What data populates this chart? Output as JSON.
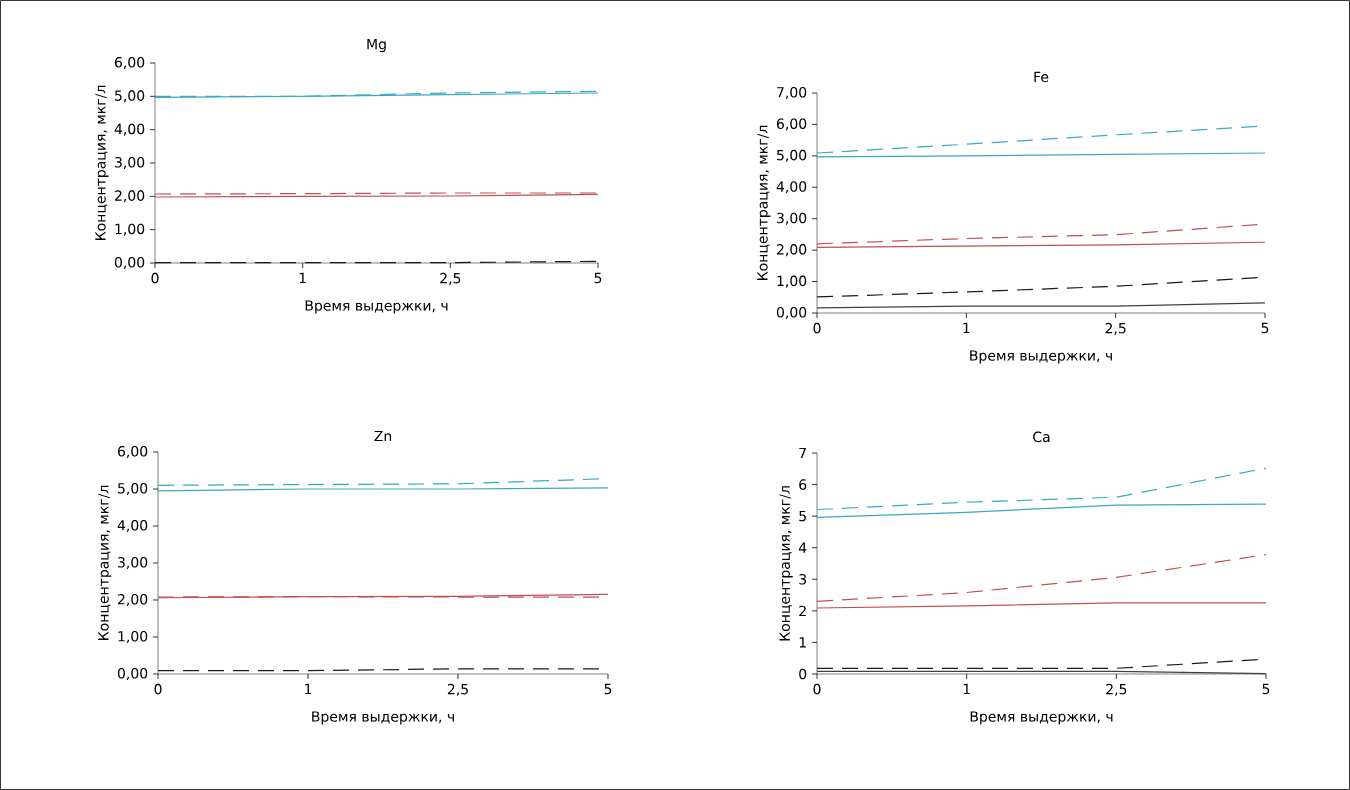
{
  "chart_data": [
    {
      "type": "line",
      "title": "Mg",
      "xlabel": "Время выдержки, ч",
      "ylabel": "Концентрация, мкг/л",
      "categories": [
        "0",
        "1",
        "2,5",
        "5"
      ],
      "ylim": [
        0,
        6
      ],
      "yticks": [
        {
          "value": 0,
          "label": "0,00"
        },
        {
          "value": 1,
          "label": "1,00"
        },
        {
          "value": 2,
          "label": "2,00"
        },
        {
          "value": 3,
          "label": "3,00"
        },
        {
          "value": 4,
          "label": "4,00"
        },
        {
          "value": 5,
          "label": "5,00"
        },
        {
          "value": 6,
          "label": "6,00"
        }
      ],
      "series": [
        {
          "color": "#3aa9c4",
          "line_style": "dashed",
          "values": [
            5.0,
            5.0,
            5.1,
            5.15
          ]
        },
        {
          "color": "#3aa9c4",
          "line_style": "solid",
          "values": [
            4.97,
            5.0,
            5.05,
            5.1
          ]
        },
        {
          "color": "#c0504d",
          "line_style": "dashed",
          "values": [
            2.07,
            2.08,
            2.1,
            2.1
          ]
        },
        {
          "color": "#c0504d",
          "line_style": "solid",
          "values": [
            1.98,
            2.0,
            2.01,
            2.06
          ]
        },
        {
          "color": "#1a1a1a",
          "line_style": "dashed",
          "values": [
            0.01,
            0.01,
            0.01,
            0.05
          ]
        }
      ]
    },
    {
      "type": "line",
      "title": "Fe",
      "xlabel": "Время выдержки, ч",
      "ylabel": "Концентрация, мкг/л",
      "categories": [
        "0",
        "1",
        "2,5",
        "5"
      ],
      "ylim": [
        0,
        7
      ],
      "yticks": [
        {
          "value": 0,
          "label": "0,00"
        },
        {
          "value": 1,
          "label": "1,00"
        },
        {
          "value": 2,
          "label": "2,00"
        },
        {
          "value": 3,
          "label": "3,00"
        },
        {
          "value": 4,
          "label": "4,00"
        },
        {
          "value": 5,
          "label": "5,00"
        },
        {
          "value": 6,
          "label": "6,00"
        },
        {
          "value": 7,
          "label": "7,00"
        }
      ],
      "series": [
        {
          "color": "#3aa9c4",
          "line_style": "dashed",
          "values": [
            5.09,
            5.37,
            5.67,
            5.95
          ]
        },
        {
          "color": "#3aa9c4",
          "line_style": "solid",
          "values": [
            4.97,
            5.0,
            5.05,
            5.09
          ]
        },
        {
          "color": "#c0504d",
          "line_style": "dashed",
          "values": [
            2.2,
            2.37,
            2.49,
            2.83
          ]
        },
        {
          "color": "#c0504d",
          "line_style": "solid",
          "values": [
            2.09,
            2.13,
            2.17,
            2.25
          ]
        },
        {
          "color": "#1a1a1a",
          "line_style": "dashed",
          "values": [
            0.51,
            0.67,
            0.85,
            1.14
          ]
        },
        {
          "color": "#404040",
          "line_style": "solid",
          "values": [
            0.16,
            0.22,
            0.22,
            0.32
          ]
        }
      ]
    },
    {
      "type": "line",
      "title": "Zn",
      "xlabel": "Время выдержки, ч",
      "ylabel": "Концентрация, мкг/л",
      "categories": [
        "0",
        "1",
        "2,5",
        "5"
      ],
      "ylim": [
        0,
        6
      ],
      "yticks": [
        {
          "value": 0,
          "label": "0,00"
        },
        {
          "value": 1,
          "label": "1,00"
        },
        {
          "value": 2,
          "label": "2,00"
        },
        {
          "value": 3,
          "label": "3,00"
        },
        {
          "value": 4,
          "label": "4,00"
        },
        {
          "value": 5,
          "label": "5,00"
        },
        {
          "value": 6,
          "label": "6,00"
        }
      ],
      "series": [
        {
          "color": "#3aa9c4",
          "line_style": "dashed",
          "values": [
            5.1,
            5.12,
            5.14,
            5.28
          ]
        },
        {
          "color": "#3aa9c4",
          "line_style": "solid",
          "values": [
            4.95,
            5.0,
            5.0,
            5.03
          ]
        },
        {
          "color": "#c0504d",
          "line_style": "dashed",
          "values": [
            2.08,
            2.09,
            2.08,
            2.08
          ]
        },
        {
          "color": "#c0504d",
          "line_style": "solid",
          "values": [
            2.06,
            2.09,
            2.1,
            2.15
          ]
        },
        {
          "color": "#1a1a1a",
          "line_style": "dashed",
          "values": [
            0.09,
            0.09,
            0.14,
            0.14
          ]
        }
      ]
    },
    {
      "type": "line",
      "title": "Ca",
      "xlabel": "Время выдержки, ч",
      "ylabel": "Концентрация, мкг/л",
      "categories": [
        "0",
        "1",
        "2,5",
        "5"
      ],
      "ylim": [
        0,
        7
      ],
      "yticks": [
        0,
        1,
        2,
        3,
        4,
        5,
        6,
        7
      ],
      "series": [
        {
          "color": "#3aa9c4",
          "line_style": "dashed",
          "values": [
            5.21,
            5.44,
            5.6,
            6.52
          ]
        },
        {
          "color": "#3aa9c4",
          "line_style": "solid",
          "values": [
            4.96,
            5.12,
            5.35,
            5.38
          ]
        },
        {
          "color": "#c0504d",
          "line_style": "dashed",
          "values": [
            2.3,
            2.58,
            3.06,
            3.78
          ]
        },
        {
          "color": "#c0504d",
          "line_style": "solid",
          "values": [
            2.09,
            2.16,
            2.25,
            2.25
          ]
        },
        {
          "color": "#1a1a1a",
          "line_style": "dashed",
          "values": [
            0.18,
            0.18,
            0.18,
            0.47
          ]
        },
        {
          "color": "#404040",
          "line_style": "solid",
          "values": [
            0.08,
            0.08,
            0.08,
            0.01
          ]
        }
      ]
    }
  ]
}
